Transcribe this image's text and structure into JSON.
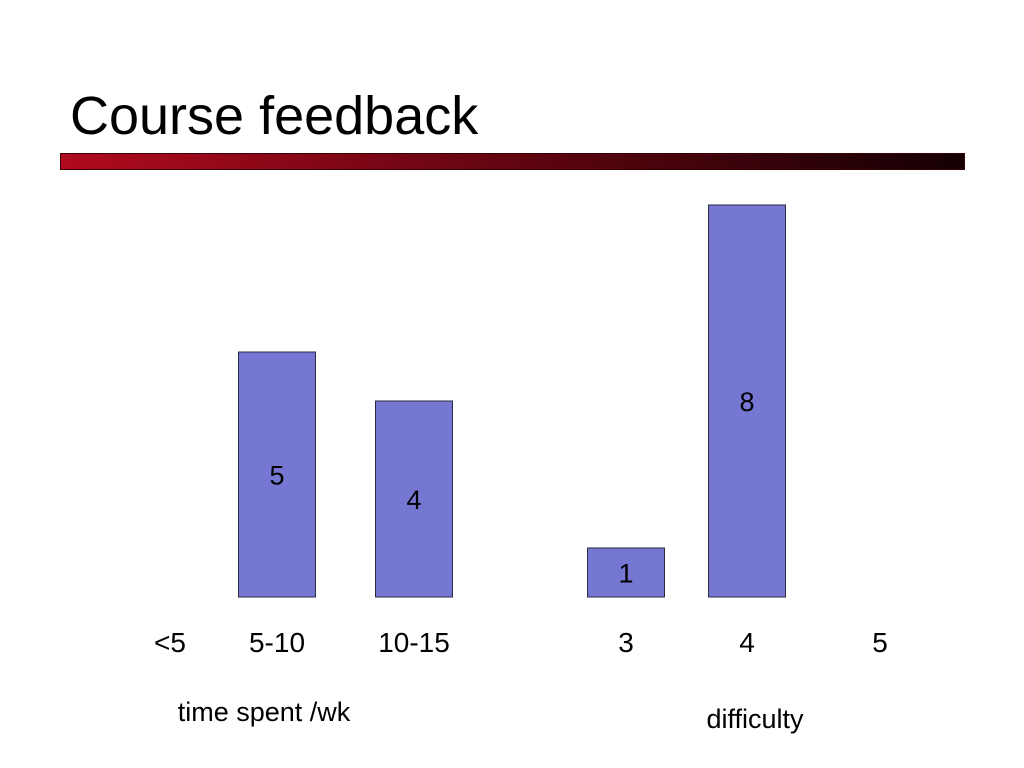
{
  "slide": {
    "title": "Course feedback"
  },
  "colors": {
    "bar_fill": "#7577d3",
    "bar_stroke": "#2a2a40",
    "rule_start": "#b00a1e",
    "rule_end": "#140003"
  },
  "chart_data": [
    {
      "type": "bar",
      "categories": [
        "<5",
        "5-10",
        "10-15"
      ],
      "values": [
        0,
        5,
        4
      ],
      "data_labels": [
        "",
        "5",
        "4"
      ],
      "xlabel": "time spent /wk",
      "ylabel": "",
      "ylim": [
        0,
        8
      ],
      "grid": false,
      "legend": "none"
    },
    {
      "type": "bar",
      "categories": [
        "3",
        "4",
        "5"
      ],
      "values": [
        1,
        8,
        0
      ],
      "data_labels": [
        "1",
        "8",
        ""
      ],
      "xlabel": "difficulty",
      "ylabel": "",
      "ylim": [
        0,
        8
      ],
      "grid": false,
      "legend": "none"
    }
  ]
}
